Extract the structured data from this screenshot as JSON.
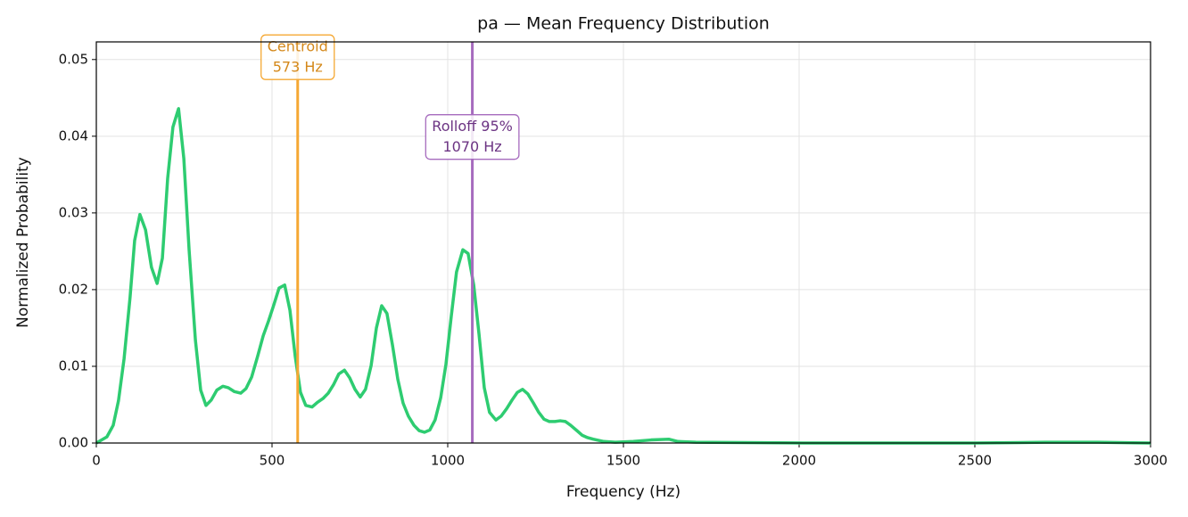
{
  "chart_data": {
    "type": "line",
    "title": "pa  —  Mean Frequency Distribution",
    "x_label": "Frequency (Hz)",
    "y_label": "Normalized Probability",
    "x": [
      0,
      30,
      48,
      63,
      79,
      96,
      109,
      124,
      140,
      157,
      173,
      188,
      203,
      218,
      234,
      249,
      264,
      282,
      297,
      312,
      327,
      343,
      360,
      376,
      393,
      411,
      426,
      442,
      459,
      475,
      490,
      505,
      520,
      536,
      551,
      566,
      581,
      596,
      614,
      629,
      645,
      660,
      675,
      690,
      706,
      721,
      736,
      751,
      766,
      782,
      797,
      812,
      827,
      843,
      858,
      873,
      888,
      904,
      919,
      934,
      949,
      964,
      980,
      995,
      1010,
      1025,
      1043,
      1058,
      1074,
      1089,
      1104,
      1119,
      1137,
      1152,
      1168,
      1183,
      1198,
      1213,
      1228,
      1244,
      1259,
      1274,
      1289,
      1305,
      1320,
      1335,
      1350,
      1368,
      1383,
      1398,
      1414,
      1444,
      1477,
      1528,
      1579,
      1629,
      1655,
      1706,
      2010,
      2500,
      2700,
      2850,
      3000
    ],
    "series": [
      {
        "name": "pa",
        "color": "#2ecc71",
        "values": [
          0,
          0.0008,
          0.0023,
          0.0055,
          0.011,
          0.019,
          0.0264,
          0.0298,
          0.0278,
          0.0229,
          0.0208,
          0.0241,
          0.0345,
          0.0412,
          0.0436,
          0.0371,
          0.0252,
          0.0134,
          0.0069,
          0.0049,
          0.0056,
          0.0069,
          0.0074,
          0.0072,
          0.0067,
          0.0065,
          0.0071,
          0.0086,
          0.0113,
          0.014,
          0.0159,
          0.018,
          0.0202,
          0.0206,
          0.0173,
          0.0113,
          0.0066,
          0.0049,
          0.0047,
          0.0053,
          0.0058,
          0.0065,
          0.0076,
          0.009,
          0.0095,
          0.0085,
          0.007,
          0.006,
          0.007,
          0.0101,
          0.015,
          0.0179,
          0.0169,
          0.0127,
          0.0083,
          0.0052,
          0.0035,
          0.0023,
          0.0016,
          0.0014,
          0.0017,
          0.003,
          0.0059,
          0.0103,
          0.0165,
          0.0223,
          0.0252,
          0.0247,
          0.0206,
          0.0142,
          0.0072,
          0.004,
          0.003,
          0.0035,
          0.0045,
          0.0056,
          0.0066,
          0.007,
          0.0064,
          0.0052,
          0.004,
          0.0031,
          0.0028,
          0.0028,
          0.0029,
          0.0028,
          0.0023,
          0.0016,
          0.001,
          0.0007,
          0.0005,
          0.0002,
          0.0001,
          0.0002,
          0.0004,
          0.0005,
          0.0002,
          0.0001,
          0,
          0,
          0.0001,
          0.0001,
          0
        ]
      }
    ],
    "xlim": [
      0,
      3000
    ],
    "xticks": [
      0,
      500,
      1000,
      1500,
      2000,
      2500,
      3000
    ],
    "ylim": [
      0,
      0.0523
    ],
    "yticks": [
      {
        "value": 0,
        "label": "0.00"
      },
      {
        "value": 0.01,
        "label": "0.01"
      },
      {
        "value": 0.02,
        "label": "0.02"
      },
      {
        "value": 0.03,
        "label": "0.03"
      },
      {
        "value": 0.04,
        "label": "0.04"
      },
      {
        "value": 0.05,
        "label": "0.05"
      }
    ],
    "grid": true,
    "annotations": [
      {
        "label": "Centroid",
        "value_label": "573 Hz",
        "x": 573,
        "color": "#f5a833",
        "text_color": "#d4881a",
        "y": 0.0503
      },
      {
        "label": "Rolloff 95%",
        "value_label": "1070 Hz",
        "x": 1070,
        "color": "#a66bbe",
        "text_color": "#6c3483",
        "y": 0.0399
      }
    ]
  }
}
